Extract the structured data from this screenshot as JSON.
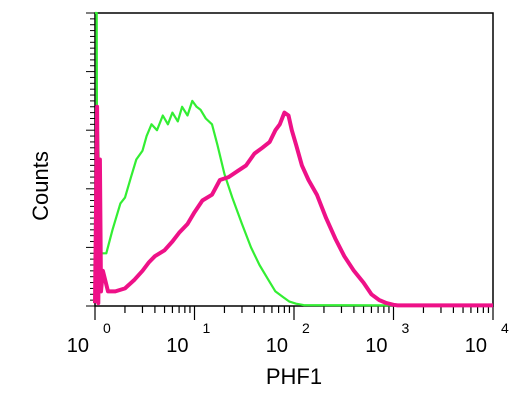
{
  "chart_data": {
    "type": "line",
    "title": "",
    "xlabel": "PHF1",
    "ylabel": "Counts",
    "x_scale": "log",
    "xlim": [
      1,
      10000
    ],
    "ylim": [
      0,
      100
    ],
    "x_ticks": [
      {
        "base": "10",
        "exp": "0",
        "value": 1
      },
      {
        "base": "10",
        "exp": "1",
        "value": 10
      },
      {
        "base": "10",
        "exp": "2",
        "value": 100
      },
      {
        "base": "10",
        "exp": "3",
        "value": 1000
      },
      {
        "base": "10",
        "exp": "4",
        "value": 10000
      }
    ],
    "grid": false,
    "legend": "none",
    "series": [
      {
        "color": "#33ee33",
        "x": [
          1.0,
          1.04,
          1.05,
          1.07,
          1.1,
          1.12,
          1.15,
          1.3,
          1.5,
          1.8,
          2.0,
          2.3,
          2.6,
          3.0,
          3.3,
          3.7,
          4.2,
          4.8,
          5.4,
          6.0,
          6.8,
          7.5,
          8.5,
          9.5,
          10.5,
          11.5,
          13,
          15,
          17,
          20,
          24,
          30,
          37,
          45,
          55,
          65,
          78,
          90,
          105,
          125,
          1000,
          10000
        ],
        "y": [
          100,
          100,
          35,
          60,
          45,
          30,
          18,
          18,
          26,
          35,
          37,
          44,
          50,
          53,
          58,
          62,
          60,
          65,
          62,
          66,
          63,
          68,
          65,
          70,
          68,
          67,
          64,
          62,
          55,
          45,
          37,
          28,
          20,
          14,
          9,
          5,
          3,
          1.5,
          0.8,
          0.3,
          0.2,
          0.2
        ]
      },
      {
        "color": "#ee1188",
        "x": [
          1.0,
          1.05,
          1.08,
          1.12,
          1.15,
          1.2,
          1.35,
          1.6,
          2.0,
          2.5,
          3.0,
          3.5,
          4.0,
          5.0,
          6.0,
          7.0,
          8.5,
          10,
          12,
          15,
          18,
          22,
          27,
          33,
          40,
          48,
          57,
          65,
          72,
          80,
          88,
          95,
          105,
          120,
          140,
          170,
          210,
          260,
          320,
          400,
          500,
          600,
          720,
          850,
          1000,
          1100,
          1300,
          10000
        ],
        "y": [
          1,
          68,
          1,
          50,
          5,
          12,
          5,
          5,
          6,
          9,
          12,
          15,
          17,
          19,
          22,
          25,
          28,
          32,
          36,
          38,
          43,
          44,
          46,
          48,
          52,
          54,
          56,
          60,
          62,
          66,
          65,
          60,
          55,
          48,
          43,
          38,
          30,
          23,
          17,
          12,
          8,
          4,
          2,
          1,
          0.4,
          0.2,
          0.2,
          0.2
        ]
      }
    ]
  }
}
